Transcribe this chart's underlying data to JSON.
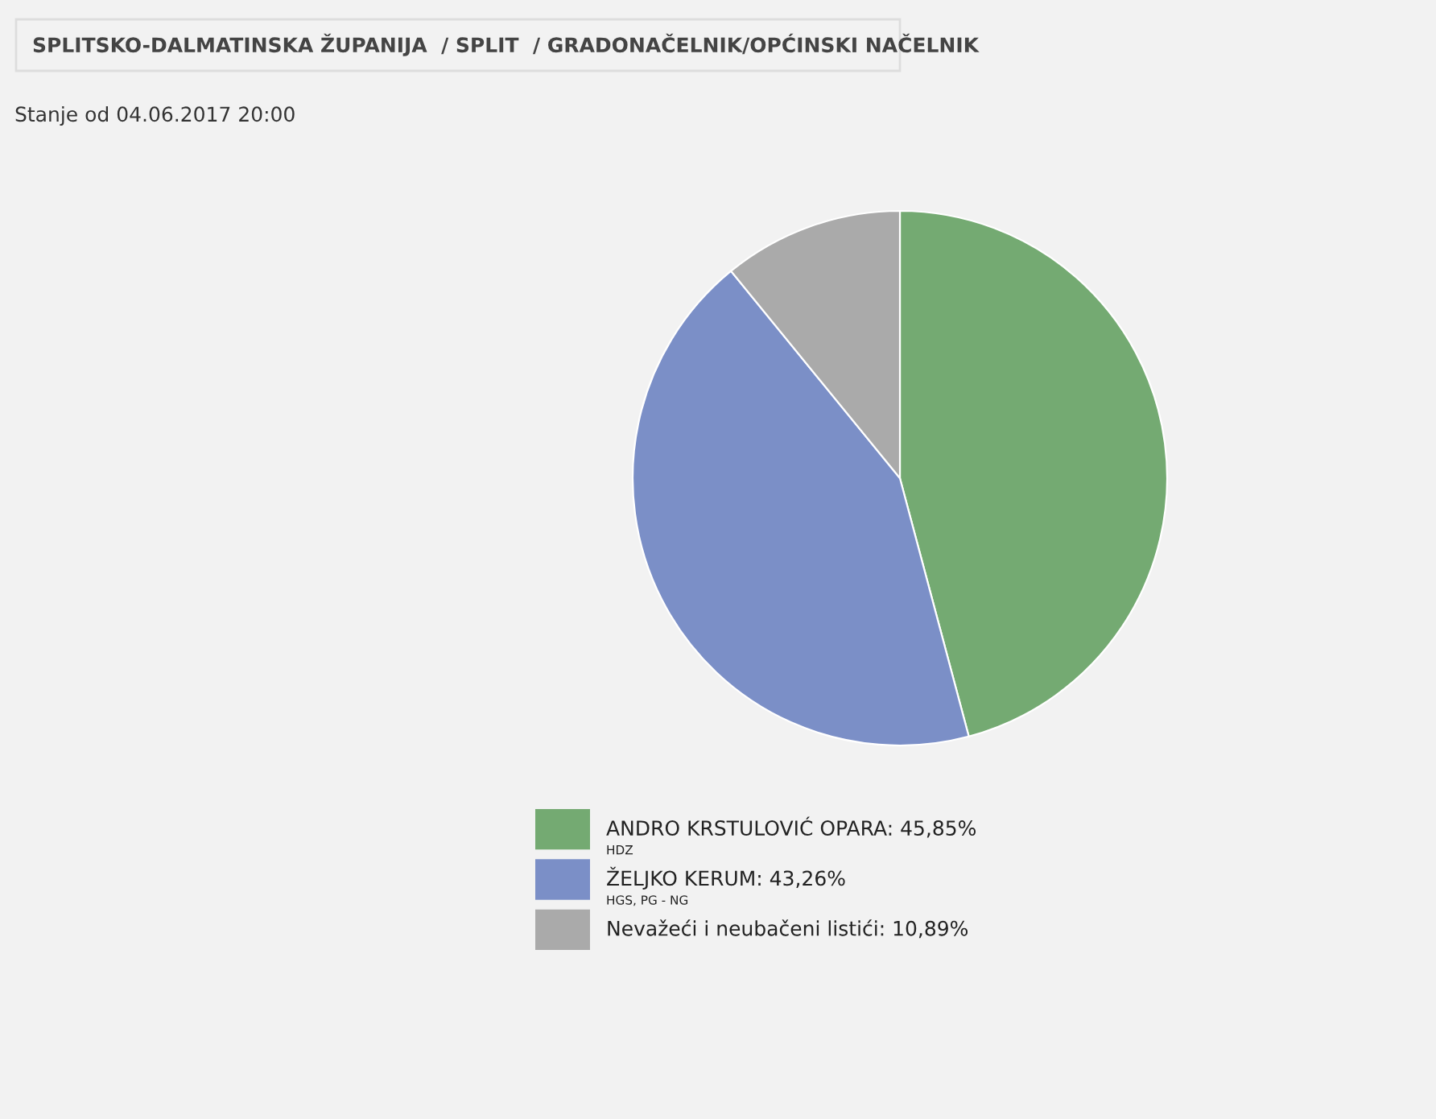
{
  "chart_data": {
    "type": "pie",
    "title": "SPLITSKO-DALMATINSKA ŽUPANIJA  / SPLIT  / GRADONAČELNIK/OPĆINSKI NAČELNIK",
    "subtitle": "Stanje od 04.06.2017 20:00",
    "categories": [
      "ANDRO KRSTULOVIĆ OPARA",
      "ŽELJKO KERUM",
      "Nevažeći i neubačeni listići"
    ],
    "values": [
      45.85,
      43.26,
      10.89
    ],
    "value_labels": [
      "45,85%",
      "43,26%",
      "10,89%"
    ],
    "colors": [
      "#74aa72",
      "#7b8fc7",
      "#aaaaaa"
    ],
    "annotations": [
      "HDZ",
      "HGS, PG - NG"
    ],
    "legend": "bottom"
  }
}
